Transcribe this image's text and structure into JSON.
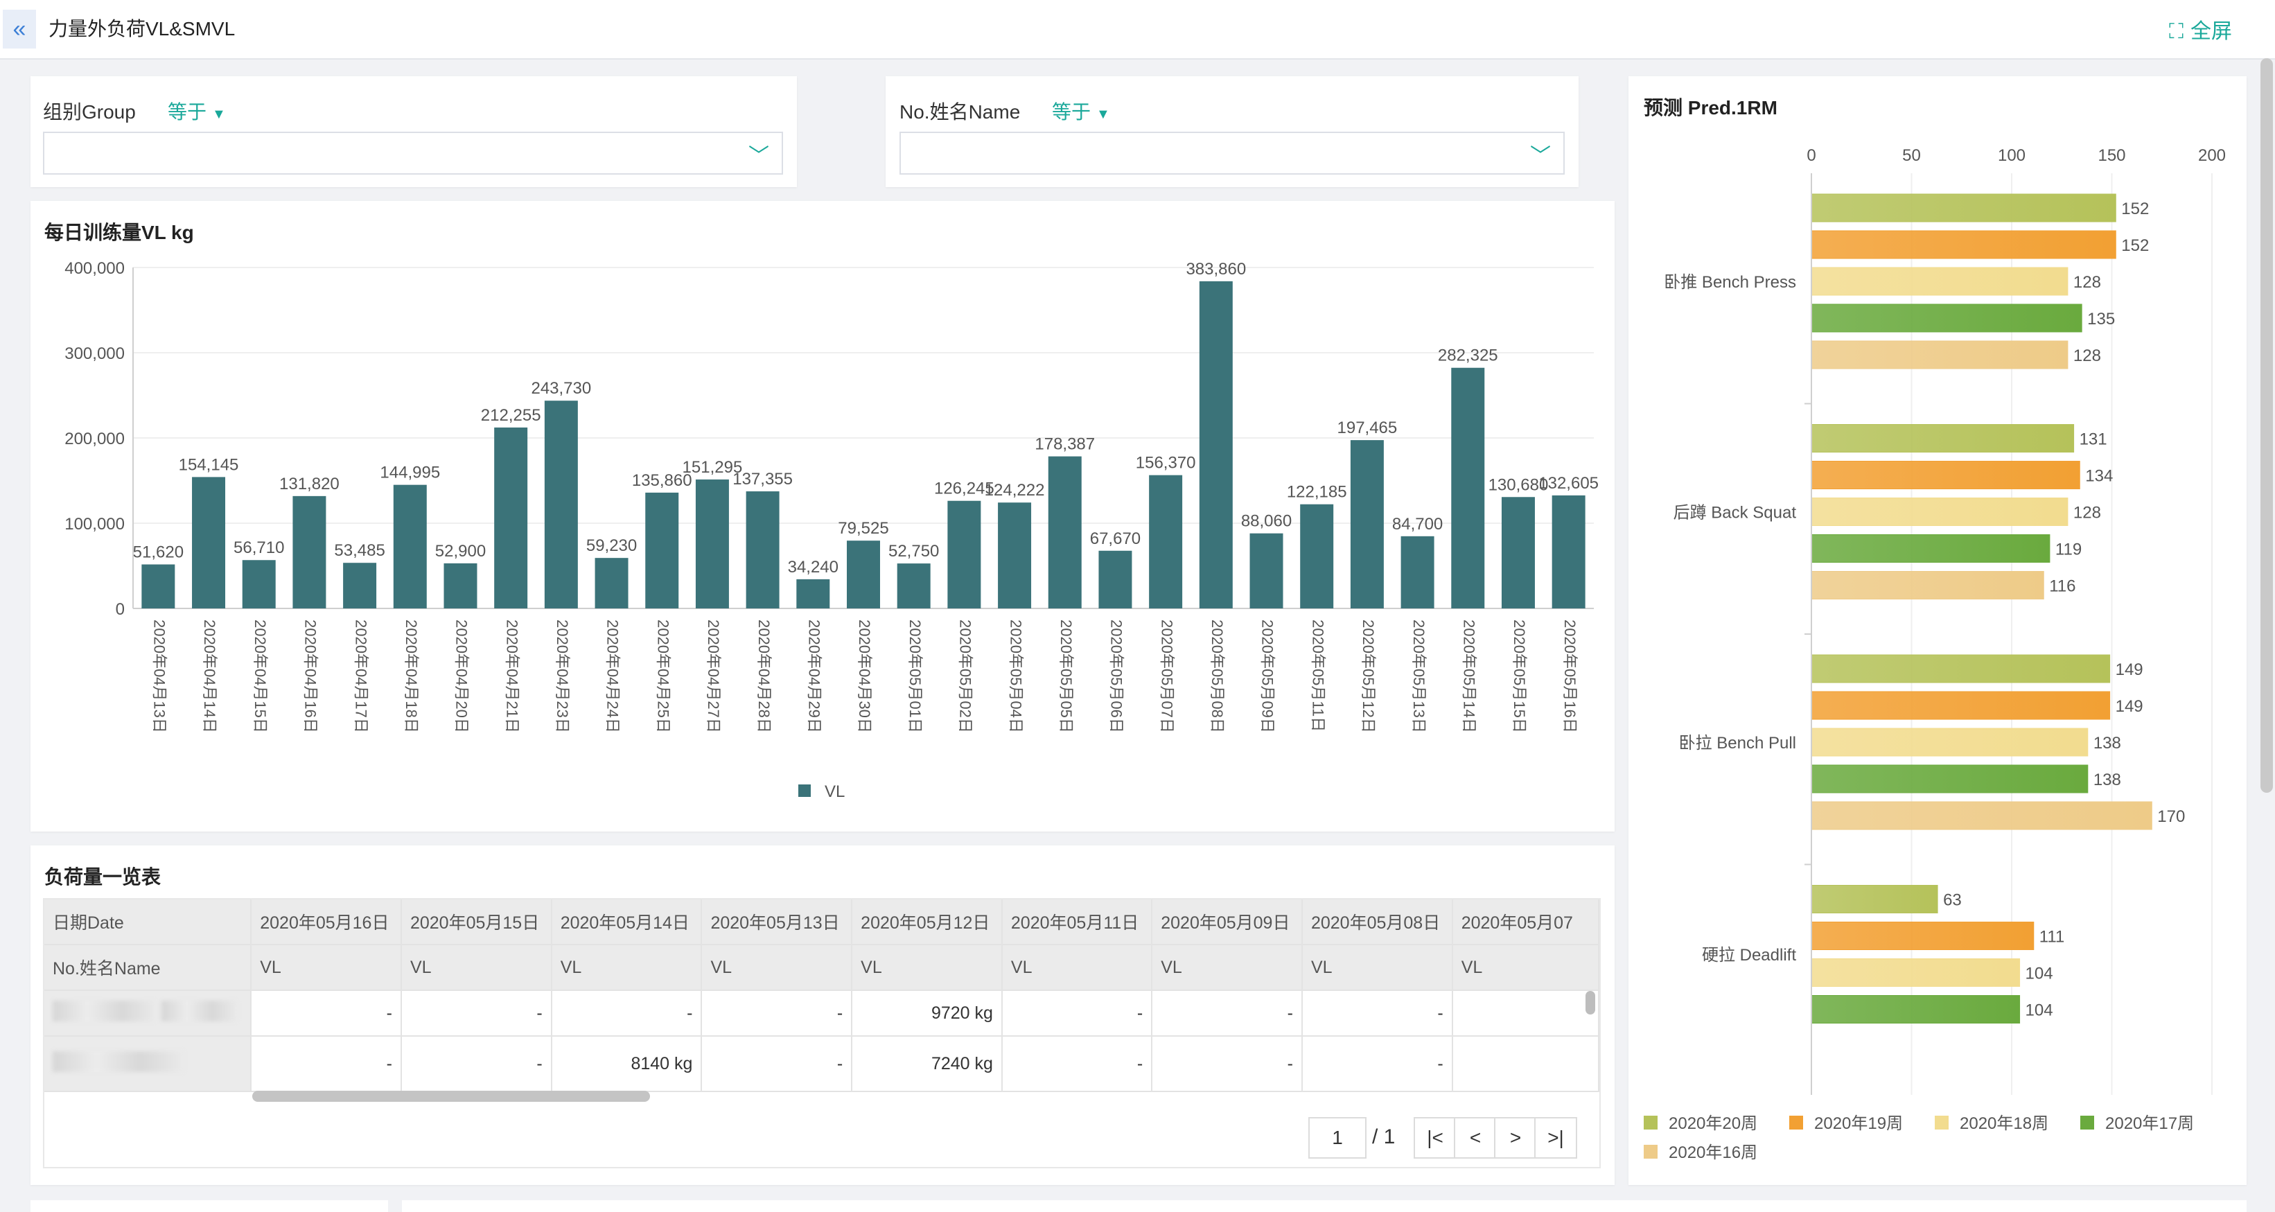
{
  "header": {
    "back_icon": "«",
    "title": "力量外负荷VL&SMVL",
    "fullscreen_label": "全屏"
  },
  "filters": [
    {
      "label": "组别Group",
      "operator": "等于",
      "value": ""
    },
    {
      "label": "No.姓名Name",
      "operator": "等于",
      "value": ""
    }
  ],
  "vl_chart": {
    "title": "每日训练量VL kg",
    "legend": "VL",
    "color": "#3b7379",
    "chart_data": {
      "type": "bar",
      "ylim": [
        0,
        400000
      ],
      "y_ticks": [
        "0",
        "100,000",
        "200,000",
        "300,000",
        "400,000"
      ],
      "categories": [
        "2020年04月13日",
        "2020年04月14日",
        "2020年04月15日",
        "2020年04月16日",
        "2020年04月17日",
        "2020年04月18日",
        "2020年04月20日",
        "2020年04月21日",
        "2020年04月23日",
        "2020年04月24日",
        "2020年04月25日",
        "2020年04月27日",
        "2020年04月28日",
        "2020年04月29日",
        "2020年04月30日",
        "2020年05月01日",
        "2020年05月02日",
        "2020年05月04日",
        "2020年05月05日",
        "2020年05月06日",
        "2020年05月07日",
        "2020年05月08日",
        "2020年05月09日",
        "2020年05月11日",
        "2020年05月12日",
        "2020年05月13日",
        "2020年05月14日",
        "2020年05月15日",
        "2020年05月16日"
      ],
      "values": [
        51620,
        154145,
        56710,
        131820,
        53485,
        144995,
        52900,
        212255,
        243730,
        59230,
        135860,
        151295,
        137355,
        34240,
        79525,
        52750,
        126245,
        124222,
        178387,
        67670,
        156370,
        383860,
        88060,
        122185,
        197465,
        84700,
        282325,
        130680,
        132605
      ],
      "labels": [
        "51,620",
        "154,145",
        "56,710",
        "131,820",
        "53,485",
        "144,995",
        "52,900",
        "212,255",
        "243,730",
        "59,230",
        "135,860",
        "151,295",
        "137,355",
        "34,240",
        "79,525",
        "52,750",
        "126,245",
        "124,222",
        "178,387",
        "67,670",
        "156,370",
        "383,860",
        "88,060",
        "122,185",
        "197,465",
        "84,700",
        "282,325",
        "130,680",
        "132,605"
      ]
    }
  },
  "load_table": {
    "title": "负荷量一览表",
    "col_head": "日期Date",
    "row_head": "No.姓名Name",
    "dates": [
      "2020年05月16日",
      "2020年05月15日",
      "2020年05月14日",
      "2020年05月13日",
      "2020年05月12日",
      "2020年05月11日",
      "2020年05月09日",
      "2020年05月08日",
      "2020年05月07"
    ],
    "metric": "VL",
    "rows": [
      {
        "cells": [
          "-",
          "-",
          "-",
          "-",
          "9720 kg",
          "-",
          "-",
          "-",
          ""
        ]
      },
      {
        "cells": [
          "-",
          "-",
          "8140 kg",
          "-",
          "7240 kg",
          "-",
          "-",
          "-",
          ""
        ]
      }
    ],
    "pager": {
      "current": "1",
      "total": "/ 1",
      "first_icon": "|<",
      "prev_icon": "<",
      "next_icon": ">",
      "last_icon": ">|"
    }
  },
  "rm_chart": {
    "title": "预测 Pred.1RM",
    "chart_data": {
      "type": "bar",
      "orientation": "horizontal",
      "xlim": [
        0,
        200
      ],
      "x_ticks": [
        "0",
        "50",
        "100",
        "150",
        "200"
      ],
      "categories": [
        "卧推 Bench Press",
        "后蹲 Back Squat",
        "卧拉 Bench Pull",
        "硬拉 Deadlift"
      ],
      "series": [
        {
          "name": "2020年20周",
          "color": "#b5c25a",
          "values": [
            152,
            131,
            149,
            63
          ]
        },
        {
          "name": "2020年19周",
          "color": "#f2a033",
          "values": [
            152,
            134,
            149,
            111
          ]
        },
        {
          "name": "2020年18周",
          "color": "#f2dc8f",
          "values": [
            128,
            128,
            138,
            104
          ]
        },
        {
          "name": "2020年17周",
          "color": "#6aaa3e",
          "values": [
            135,
            119,
            138,
            104
          ]
        },
        {
          "name": "2020年16周",
          "color": "#eecb88",
          "values": [
            128,
            116,
            170,
            null
          ]
        }
      ]
    }
  }
}
